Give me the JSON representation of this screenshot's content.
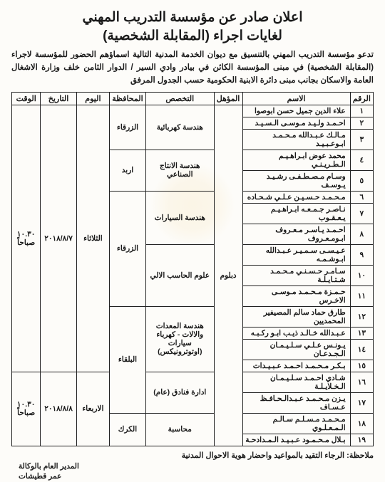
{
  "title_line1": "اعلان صادر عن مؤسسة التدريب المهني",
  "title_line2": "لغايات اجراء (المقابلة الشخصية)",
  "intro": "تدعو مؤسسة التدريب المهني بالتنسيق مع ديوان الخدمة المدنية التالية اسماؤهم الحضور للمؤسسة لاجراء (المقابلة الشخصية) في مبنى المؤسسة الكائن في بيادر وادي السير / الدوار الثامن خلف وزارة الاشغال العامة والاسكان بجانب مبنى دائرة الابنية الحكومية حسب الجدول المرفق",
  "headers": {
    "num": "الرقم",
    "name": "الاسم",
    "qual": "المؤهل",
    "spec": "التخصص",
    "gov": "المحافظة",
    "day": "اليوم",
    "date": "التاريخ",
    "time": "الوقت"
  },
  "qualification": "دبلوم",
  "sessions": [
    {
      "day": "الثلاثاء",
      "date": "٢٠١٨/٨/٧",
      "time": "١٠.٣٠ صباحاً"
    },
    {
      "day": "الاربعاء",
      "date": "٢٠١٨/٨/٨",
      "time": "١٠.٣٠ صباحاً"
    }
  ],
  "specs": [
    {
      "label": "هندسة كهربائية",
      "gov": "الزرقاء"
    },
    {
      "label": "هندسة الانتاج الصناعي",
      "gov": "اربد"
    },
    {
      "label": "هندسة السيارات",
      "gov": "الزرقاء"
    },
    {
      "label": "علوم الحاسب الالي",
      "gov": "الزرقاء"
    },
    {
      "label": "هندسة المعدات والالات - كهرباء سيارات (اوتوترونيكس)",
      "gov": "البلقاء"
    },
    {
      "label": "ادارة فنادق (عام)",
      "gov": "البلقاء"
    },
    {
      "label": "محاسبة",
      "gov": "الكرك"
    }
  ],
  "rows": [
    {
      "n": "١",
      "name": "علاء الدين جميل حسن ابوصوا"
    },
    {
      "n": "٢",
      "name": "احـمـد ولـيـد مـوسـى الـسـيـد"
    },
    {
      "n": "٣",
      "name": "مـالـك عـبـدالله مـحـمـد ابـوعـبـيـد"
    },
    {
      "n": "٤",
      "name": "محمد عوض ابـراهـيـم الـطـريـنـي"
    },
    {
      "n": "٥",
      "name": "وسـام مـصـطـفـى رشـيـد يـوسـف"
    },
    {
      "n": "٦",
      "name": "مـحـمـد حـسـيـن عـلـي شـحـاده"
    },
    {
      "n": "٧",
      "name": "نـاصـر جـمـعـه ابـراهـيـم يـعـقـوب"
    },
    {
      "n": "٨",
      "name": "احـمـد يـاسـر مـعـروف ابـومـعـروف"
    },
    {
      "n": "٩",
      "name": "عـيـسـى سـمـيـر عـبـدالله ابـوشـمـه"
    },
    {
      "n": "١٠",
      "name": "سـامـر حـسـنـي مـحـمـد شـتـايـلـة"
    },
    {
      "n": "١١",
      "name": "حـمـزة مـحـمـد مـوسـى الاخـرس"
    },
    {
      "n": "١٢",
      "name": "طارق حماد سالم المصيفير المحمديين"
    },
    {
      "n": "١٣",
      "name": "عـبـدالله خـالـد ذيـب ابـو ركـبـه"
    },
    {
      "n": "١٤",
      "name": "يـونـس عـلـي سـلـيـمـان الـجـدعـان"
    },
    {
      "n": "١٥",
      "name": "بـكـر مـحـمـد احـمـد عـبـيـدات"
    },
    {
      "n": "١٦",
      "name": "شـادي احـمـد سـلـيـمـان الـخـلايـلـة"
    },
    {
      "n": "١٧",
      "name": "يـزن مـحـمـد عـبـدالـحـافـظ عـسـاف"
    },
    {
      "n": "١٨",
      "name": "مـحـمـد مـسـلـم سـالـم الـمـعـلـوي"
    },
    {
      "n": "١٩",
      "name": "بـلال مـحـمـود عـبـيـد الـمـدادحـة"
    }
  ],
  "note": "ملاحظة: الرجاء التقيد بالمواعيد واحضار هوية الاحوال المدنية",
  "sign1": "المدير العام بالوكالة",
  "sign2": "عمر قطيشات"
}
